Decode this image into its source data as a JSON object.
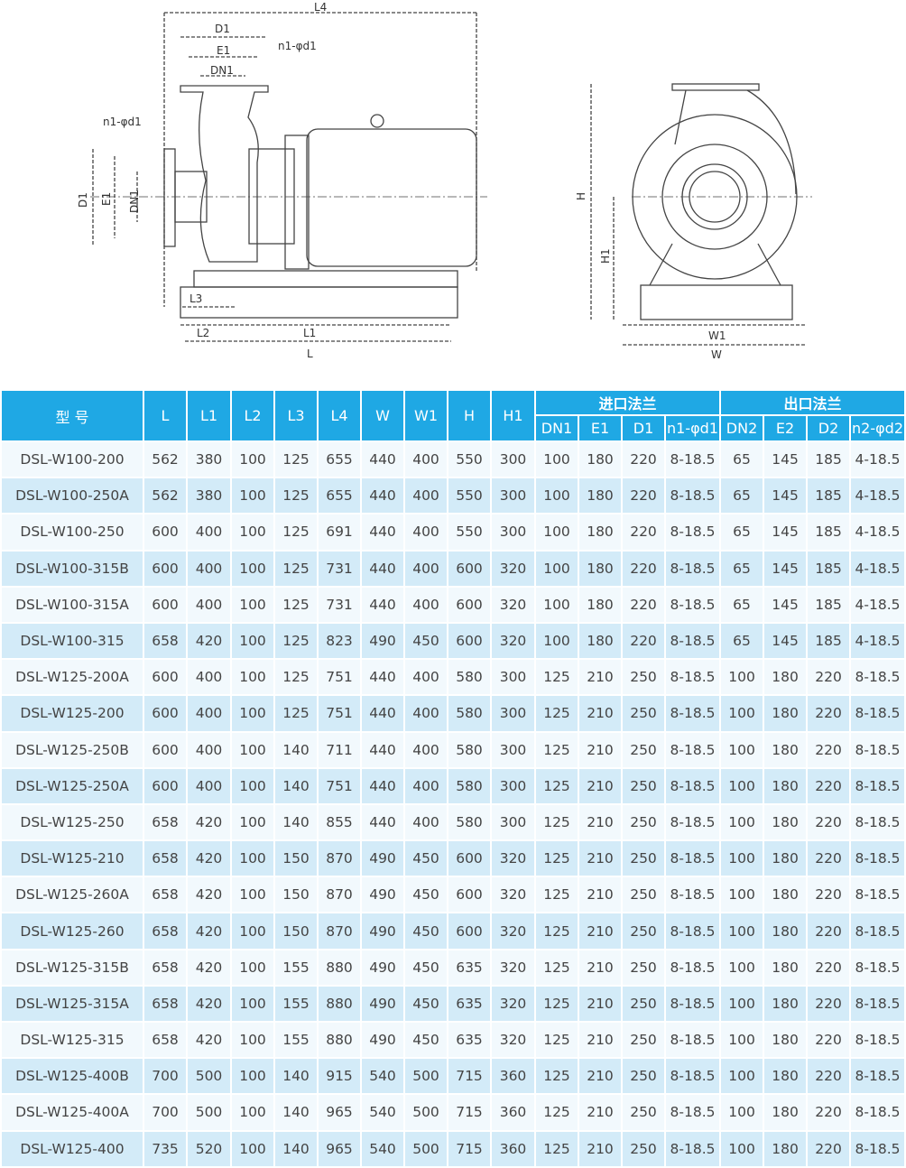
{
  "drawing": {
    "side_labels": {
      "L4": "L4",
      "D1": "D1",
      "E1": "E1",
      "DN1": "DN1",
      "n1_top": "n1-φd1",
      "n1_left": "n1-φd1",
      "D1_v": "D1",
      "E1_v": "E1",
      "DN1_v": "DN1",
      "L3": "L3",
      "L2": "L2",
      "L1": "L1",
      "L": "L"
    },
    "end_labels": {
      "H": "H",
      "H1": "H1",
      "W1": "W1",
      "W": "W"
    }
  },
  "table": {
    "colors": {
      "header": "#1fa8e4",
      "row_odd": "#f2f9fd",
      "row_even": "#d3ebf8"
    },
    "header": {
      "model": "型 号",
      "cols": [
        "L",
        "L1",
        "L2",
        "L3",
        "L4",
        "W",
        "W1",
        "H",
        "H1"
      ],
      "inlet_group": "进口法兰",
      "outlet_group": "出口法兰",
      "inlet_cols": [
        "DN1",
        "E1",
        "D1",
        "n1-φd1"
      ],
      "outlet_cols": [
        "DN2",
        "E2",
        "D2",
        "n2-φd2"
      ]
    },
    "rows": [
      [
        "DSL-W100-200",
        "562",
        "380",
        "100",
        "125",
        "655",
        "440",
        "400",
        "550",
        "300",
        "100",
        "180",
        "220",
        "8-18.5",
        "65",
        "145",
        "185",
        "4-18.5"
      ],
      [
        "DSL-W100-250A",
        "562",
        "380",
        "100",
        "125",
        "655",
        "440",
        "400",
        "550",
        "300",
        "100",
        "180",
        "220",
        "8-18.5",
        "65",
        "145",
        "185",
        "4-18.5"
      ],
      [
        "DSL-W100-250",
        "600",
        "400",
        "100",
        "125",
        "691",
        "440",
        "400",
        "550",
        "300",
        "100",
        "180",
        "220",
        "8-18.5",
        "65",
        "145",
        "185",
        "4-18.5"
      ],
      [
        "DSL-W100-315B",
        "600",
        "400",
        "100",
        "125",
        "731",
        "440",
        "400",
        "600",
        "320",
        "100",
        "180",
        "220",
        "8-18.5",
        "65",
        "145",
        "185",
        "4-18.5"
      ],
      [
        "DSL-W100-315A",
        "600",
        "400",
        "100",
        "125",
        "731",
        "440",
        "400",
        "600",
        "320",
        "100",
        "180",
        "220",
        "8-18.5",
        "65",
        "145",
        "185",
        "4-18.5"
      ],
      [
        "DSL-W100-315",
        "658",
        "420",
        "100",
        "125",
        "823",
        "490",
        "450",
        "600",
        "320",
        "100",
        "180",
        "220",
        "8-18.5",
        "65",
        "145",
        "185",
        "4-18.5"
      ],
      [
        "DSL-W125-200A",
        "600",
        "400",
        "100",
        "125",
        "751",
        "440",
        "400",
        "580",
        "300",
        "125",
        "210",
        "250",
        "8-18.5",
        "100",
        "180",
        "220",
        "8-18.5"
      ],
      [
        "DSL-W125-200",
        "600",
        "400",
        "100",
        "125",
        "751",
        "440",
        "400",
        "580",
        "300",
        "125",
        "210",
        "250",
        "8-18.5",
        "100",
        "180",
        "220",
        "8-18.5"
      ],
      [
        "DSL-W125-250B",
        "600",
        "400",
        "100",
        "140",
        "711",
        "440",
        "400",
        "580",
        "300",
        "125",
        "210",
        "250",
        "8-18.5",
        "100",
        "180",
        "220",
        "8-18.5"
      ],
      [
        "DSL-W125-250A",
        "600",
        "400",
        "100",
        "140",
        "751",
        "440",
        "400",
        "580",
        "300",
        "125",
        "210",
        "250",
        "8-18.5",
        "100",
        "180",
        "220",
        "8-18.5"
      ],
      [
        "DSL-W125-250",
        "658",
        "420",
        "100",
        "140",
        "855",
        "440",
        "400",
        "580",
        "300",
        "125",
        "210",
        "250",
        "8-18.5",
        "100",
        "180",
        "220",
        "8-18.5"
      ],
      [
        "DSL-W125-210",
        "658",
        "420",
        "100",
        "150",
        "870",
        "490",
        "450",
        "600",
        "320",
        "125",
        "210",
        "250",
        "8-18.5",
        "100",
        "180",
        "220",
        "8-18.5"
      ],
      [
        "DSL-W125-260A",
        "658",
        "420",
        "100",
        "150",
        "870",
        "490",
        "450",
        "600",
        "320",
        "125",
        "210",
        "250",
        "8-18.5",
        "100",
        "180",
        "220",
        "8-18.5"
      ],
      [
        "DSL-W125-260",
        "658",
        "420",
        "100",
        "150",
        "870",
        "490",
        "450",
        "600",
        "320",
        "125",
        "210",
        "250",
        "8-18.5",
        "100",
        "180",
        "220",
        "8-18.5"
      ],
      [
        "DSL-W125-315B",
        "658",
        "420",
        "100",
        "155",
        "880",
        "490",
        "450",
        "635",
        "320",
        "125",
        "210",
        "250",
        "8-18.5",
        "100",
        "180",
        "220",
        "8-18.5"
      ],
      [
        "DSL-W125-315A",
        "658",
        "420",
        "100",
        "155",
        "880",
        "490",
        "450",
        "635",
        "320",
        "125",
        "210",
        "250",
        "8-18.5",
        "100",
        "180",
        "220",
        "8-18.5"
      ],
      [
        "DSL-W125-315",
        "658",
        "420",
        "100",
        "155",
        "880",
        "490",
        "450",
        "635",
        "320",
        "125",
        "210",
        "250",
        "8-18.5",
        "100",
        "180",
        "220",
        "8-18.5"
      ],
      [
        "DSL-W125-400B",
        "700",
        "500",
        "100",
        "140",
        "915",
        "540",
        "500",
        "715",
        "360",
        "125",
        "210",
        "250",
        "8-18.5",
        "100",
        "180",
        "220",
        "8-18.5"
      ],
      [
        "DSL-W125-400A",
        "700",
        "500",
        "100",
        "140",
        "965",
        "540",
        "500",
        "715",
        "360",
        "125",
        "210",
        "250",
        "8-18.5",
        "100",
        "180",
        "220",
        "8-18.5"
      ],
      [
        "DSL-W125-400",
        "735",
        "520",
        "100",
        "140",
        "965",
        "540",
        "500",
        "715",
        "360",
        "125",
        "210",
        "250",
        "8-18.5",
        "100",
        "180",
        "220",
        "8-18.5"
      ]
    ]
  }
}
